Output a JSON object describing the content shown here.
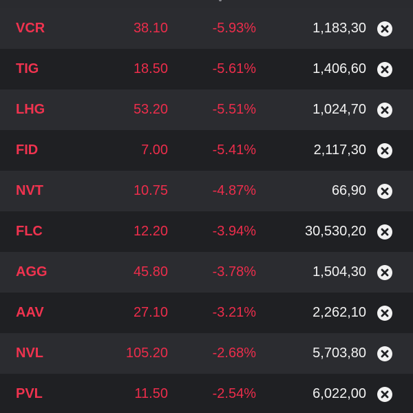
{
  "watchlist": {
    "rows": [
      {
        "symbol": "VCR",
        "price": "38.10",
        "change": "-5.93%",
        "volume": "1,183,30",
        "remove_icon": "close-circle-icon"
      },
      {
        "symbol": "TIG",
        "price": "18.50",
        "change": "-5.61%",
        "volume": "1,406,60",
        "remove_icon": "close-circle-icon"
      },
      {
        "symbol": "LHG",
        "price": "53.20",
        "change": "-5.51%",
        "volume": "1,024,70",
        "remove_icon": "close-circle-icon"
      },
      {
        "symbol": "FID",
        "price": "7.00",
        "change": "-5.41%",
        "volume": "2,117,30",
        "remove_icon": "close-circle-icon"
      },
      {
        "symbol": "NVT",
        "price": "10.75",
        "change": "-4.87%",
        "volume": "66,90",
        "remove_icon": "close-circle-icon"
      },
      {
        "symbol": "FLC",
        "price": "12.20",
        "change": "-3.94%",
        "volume": "30,530,20",
        "remove_icon": "close-circle-icon"
      },
      {
        "symbol": "AGG",
        "price": "45.80",
        "change": "-3.78%",
        "volume": "1,504,30",
        "remove_icon": "close-circle-icon"
      },
      {
        "symbol": "AAV",
        "price": "27.10",
        "change": "-3.21%",
        "volume": "2,262,10",
        "remove_icon": "close-circle-icon"
      },
      {
        "symbol": "NVL",
        "price": "105.20",
        "change": "-2.68%",
        "volume": "5,703,80",
        "remove_icon": "close-circle-icon"
      },
      {
        "symbol": "PVL",
        "price": "11.50",
        "change": "-2.54%",
        "volume": "6,022,00",
        "remove_icon": "close-circle-icon"
      }
    ]
  },
  "colors": {
    "background": "#1f2023",
    "row_alt": "#2b2c30",
    "negative": "#ec2d4b",
    "text_primary": "#f2f2f2"
  }
}
